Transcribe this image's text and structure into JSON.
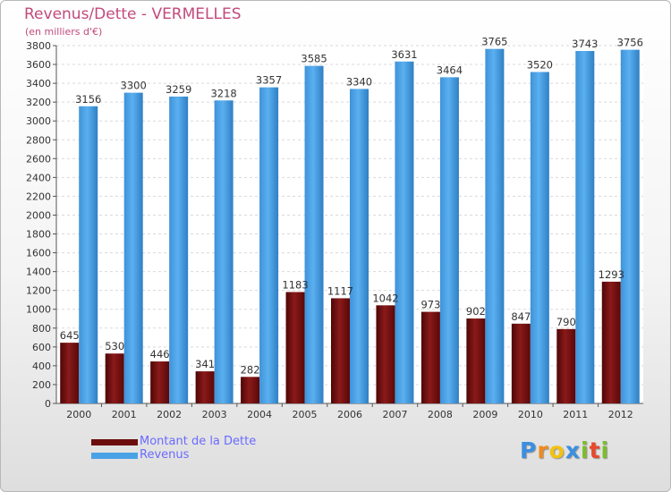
{
  "title": "Revenus/Dette - VERMELLES",
  "subtitle": "(en milliers d'€)",
  "logo": {
    "letters": [
      {
        "ch": "P",
        "color": "#3b8fe0"
      },
      {
        "ch": "r",
        "color": "#f08a1c"
      },
      {
        "ch": "o",
        "color": "#f3c20f"
      },
      {
        "ch": "x",
        "color": "#3b8fe0"
      },
      {
        "ch": "i",
        "color": "#7bbd2a"
      },
      {
        "ch": "t",
        "color": "#e8482c"
      },
      {
        "ch": "i",
        "color": "#7bbd2a"
      }
    ]
  },
  "chart_data": {
    "type": "bar",
    "title": "Revenus/Dette - VERMELLES",
    "subtitle": "(en milliers d'€)",
    "categories": [
      "2000",
      "2001",
      "2002",
      "2003",
      "2004",
      "2005",
      "2006",
      "2007",
      "2008",
      "2009",
      "2010",
      "2011",
      "2012"
    ],
    "series": [
      {
        "name": "Montant de la Dette",
        "color": "#6b0d0d",
        "values": [
          645,
          530,
          446,
          341,
          282,
          1183,
          1117,
          1042,
          973,
          902,
          847,
          790,
          1293
        ]
      },
      {
        "name": "Revenus",
        "color": "#4aa2e6",
        "values": [
          3156,
          3300,
          3259,
          3218,
          3357,
          3585,
          3340,
          3631,
          3464,
          3765,
          3520,
          3743,
          3756
        ]
      }
    ],
    "ylim": [
      0,
      3800
    ],
    "yticks": [
      0,
      200,
      400,
      600,
      800,
      1000,
      1200,
      1400,
      1600,
      1800,
      2000,
      2200,
      2400,
      2600,
      2800,
      3000,
      3200,
      3400,
      3600,
      3800
    ],
    "grid": true,
    "legend_position": "bottom-left"
  }
}
